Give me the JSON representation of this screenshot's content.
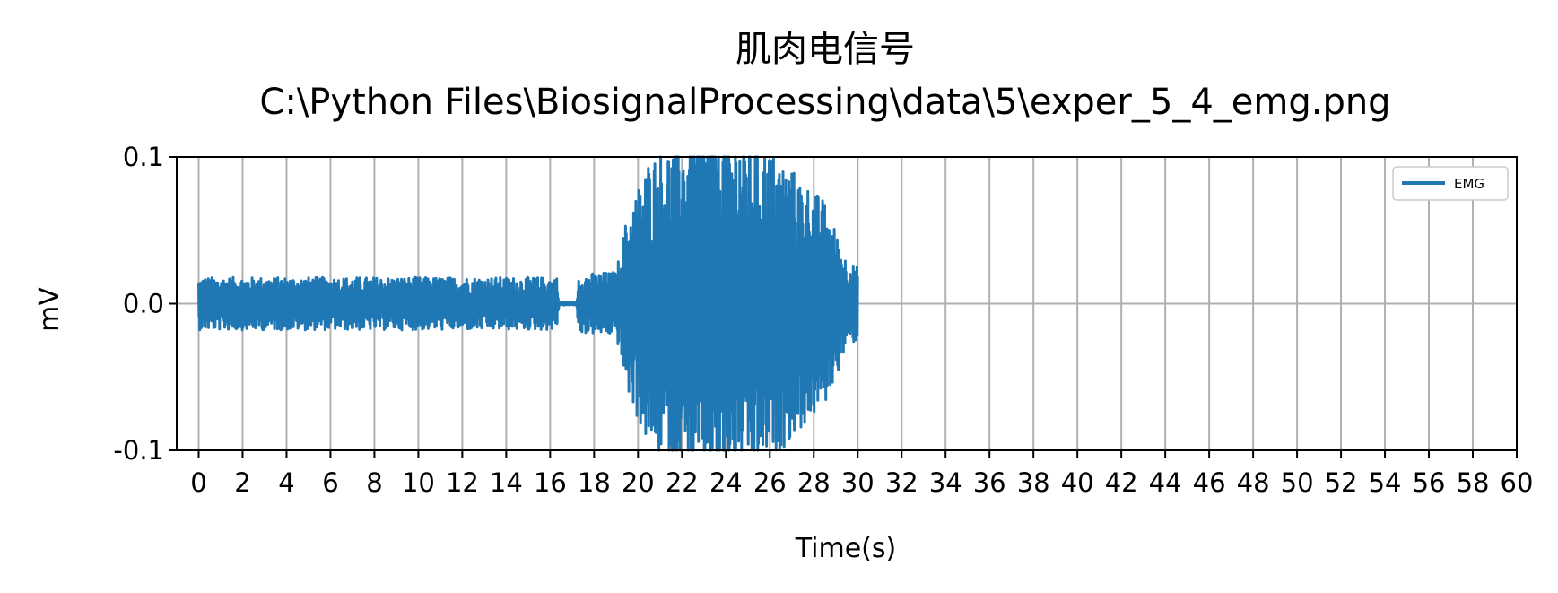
{
  "chart_data": {
    "type": "line",
    "title": "肌肉电信号",
    "subtitle": "C:\\Python Files\\BiosignalProcessing\\data\\5\\exper_5_4_emg.png",
    "xlabel": "Time(s)",
    "ylabel": "mV",
    "xlim": [
      -1,
      60
    ],
    "ylim": [
      -0.1,
      0.1
    ],
    "xticks": [
      0,
      2,
      4,
      6,
      8,
      10,
      12,
      14,
      16,
      18,
      20,
      22,
      24,
      26,
      28,
      30,
      32,
      34,
      36,
      38,
      40,
      42,
      44,
      46,
      48,
      50,
      52,
      54,
      56,
      58,
      60
    ],
    "xtick_labels": [
      "0",
      "2",
      "4",
      "6",
      "8",
      "10",
      "12",
      "14",
      "16",
      "18",
      "20",
      "22",
      "24",
      "26",
      "28",
      "30",
      "32",
      "34",
      "36",
      "38",
      "40",
      "42",
      "44",
      "46",
      "48",
      "50",
      "52",
      "54",
      "56",
      "58",
      "60"
    ],
    "yticks": [
      0.1,
      0.0,
      -0.1
    ],
    "ytick_labels": [
      "0.1",
      "0.0",
      "-0.1"
    ],
    "grid": true,
    "legend_position": "top-right",
    "series": [
      {
        "name": "EMG",
        "color": "#1f77b4",
        "x_range": [
          0,
          30
        ],
        "envelope": [
          {
            "t": 0,
            "amp": 0.018
          },
          {
            "t": 16.3,
            "amp": 0.018
          },
          {
            "t": 16.4,
            "amp": 0.001
          },
          {
            "t": 17.2,
            "amp": 0.001
          },
          {
            "t": 17.3,
            "amp": 0.02
          },
          {
            "t": 19.0,
            "amp": 0.022
          },
          {
            "t": 19.5,
            "amp": 0.06
          },
          {
            "t": 20.5,
            "amp": 0.1
          },
          {
            "t": 22.5,
            "amp": 0.12
          },
          {
            "t": 24.5,
            "amp": 0.12
          },
          {
            "t": 26.5,
            "amp": 0.1
          },
          {
            "t": 28.5,
            "amp": 0.07
          },
          {
            "t": 29.5,
            "amp": 0.03
          },
          {
            "t": 30,
            "amp": 0.025
          }
        ]
      }
    ]
  }
}
